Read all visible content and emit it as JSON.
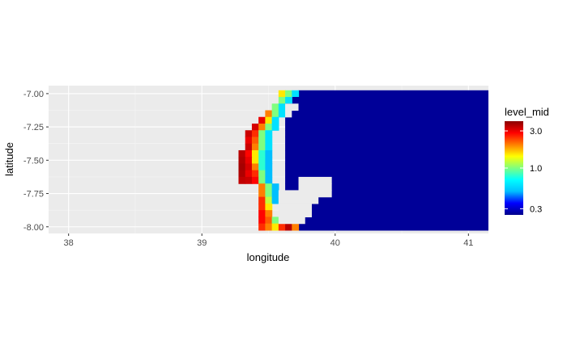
{
  "chart_data": {
    "type": "heatmap",
    "title": "",
    "xlabel": "longitude",
    "ylabel": "latitude",
    "xlim": [
      37.85,
      41.15
    ],
    "ylim": [
      -8.05,
      -6.94
    ],
    "x_ticks": [
      {
        "value": 38,
        "label": "38"
      },
      {
        "value": 39,
        "label": "39"
      },
      {
        "value": 40,
        "label": "40"
      },
      {
        "value": 41,
        "label": "41"
      }
    ],
    "y_ticks": [
      {
        "value": -7.0,
        "label": "-7.00"
      },
      {
        "value": -7.25,
        "label": "-7.25"
      },
      {
        "value": -7.5,
        "label": "-7.50"
      },
      {
        "value": -7.75,
        "label": "-7.75"
      },
      {
        "value": -8.0,
        "label": "-8.00"
      }
    ],
    "grid": true,
    "panel_background": "#ebebeb",
    "grid_color": "#ffffff",
    "legend": {
      "title": "level_mid",
      "placement": "right",
      "scale": "log",
      "range": [
        0.25,
        4.0
      ],
      "ticks": [
        {
          "value": 0.3,
          "label": "0.3"
        },
        {
          "value": 1.0,
          "label": "1.0"
        },
        {
          "value": 3.0,
          "label": "3.0"
        }
      ],
      "colors": [
        "#00008b",
        "#0000ff",
        "#00bfff",
        "#00ffff",
        "#7fff7f",
        "#ffff00",
        "#ff7f00",
        "#ff0000",
        "#8b0000"
      ]
    },
    "rows_lat": [
      -7.0,
      -7.05,
      -7.1,
      -7.15,
      -7.2,
      -7.25,
      -7.3,
      -7.35,
      -7.4,
      -7.45,
      -7.5,
      -7.55,
      -7.6,
      -7.65,
      -7.7,
      -7.75,
      -7.8,
      -7.85,
      -7.9,
      -7.95,
      -8.0
    ],
    "rows": [
      {
        "lon_start": 39.6,
        "values": [
          1.5,
          1.0,
          0.6
        ]
      },
      {
        "lon_start": 39.6,
        "values": [
          1.0,
          0.6
        ]
      },
      {
        "lon_start": 39.55,
        "values": [
          1.0,
          0.6
        ]
      },
      {
        "lon_start": 39.5,
        "values": [
          2.0,
          1.0,
          0.6
        ]
      },
      {
        "lon_start": 39.45,
        "values": [
          3.0,
          1.5,
          0.6
        ]
      },
      {
        "lon_start": 39.4,
        "values": [
          3.2,
          2.0,
          1.0,
          0.6
        ]
      },
      {
        "lon_start": 39.35,
        "values": [
          3.3,
          2.5,
          1.0,
          0.6
        ]
      },
      {
        "lon_start": 39.35,
        "values": [
          3.0,
          2.2,
          1.0,
          0.6
        ]
      },
      {
        "lon_start": 39.35,
        "values": [
          3.3,
          2.0,
          1.0,
          0.6
        ]
      },
      {
        "lon_start": 39.3,
        "values": [
          3.5,
          2.8,
          1.5,
          0.8,
          0.5
        ]
      },
      {
        "lon_start": 39.3,
        "values": [
          3.6,
          3.0,
          1.5,
          0.8,
          0.5
        ]
      },
      {
        "lon_start": 39.3,
        "values": [
          3.7,
          3.2,
          2.0,
          0.8,
          0.5
        ]
      },
      {
        "lon_start": 39.3,
        "values": [
          3.6,
          3.0,
          2.5,
          1.0,
          0.5
        ]
      },
      {
        "lon_start": 39.3,
        "values": [
          3.4,
          3.3,
          2.8,
          1.0,
          0.5
        ]
      },
      {
        "lon_start": 39.45,
        "values": [
          2.0,
          1.0,
          0.5
        ]
      },
      {
        "lon_start": 39.45,
        "values": [
          2.0,
          1.0,
          0.5
        ]
      },
      {
        "lon_start": 39.45,
        "values": [
          2.5,
          1.2,
          0.5
        ]
      },
      {
        "lon_start": 39.45,
        "values": [
          2.5,
          1.5
        ]
      },
      {
        "lon_start": 39.45,
        "values": [
          2.8,
          2.0
        ]
      },
      {
        "lon_start": 39.45,
        "values": [
          2.8,
          2.2,
          1.0
        ]
      },
      {
        "lon_start": 39.45,
        "values": [
          2.5,
          2.0,
          1.5,
          2.5,
          3.5,
          2.0
        ]
      }
    ],
    "default_value_east": 0.26,
    "ocean_east_from_lon": 39.65,
    "islands": [
      {
        "lat": -7.65,
        "lon_from": 39.75,
        "lon_to": 39.95
      },
      {
        "lat": -7.7,
        "lon_from": 39.75,
        "lon_to": 39.95
      },
      {
        "lat": -7.75,
        "lon_from": 39.6,
        "lon_to": 39.95
      },
      {
        "lat": -7.8,
        "lon_from": 39.6,
        "lon_to": 39.85
      },
      {
        "lat": -7.85,
        "lon_from": 39.6,
        "lon_to": 39.8
      },
      {
        "lat": -7.9,
        "lon_from": 39.6,
        "lon_to": 39.8
      },
      {
        "lat": -7.95,
        "lon_from": 39.6,
        "lon_to": 39.75
      },
      {
        "lat": -7.1,
        "lon_from": 39.65,
        "lon_to": 39.7
      },
      {
        "lat": -7.15,
        "lon_from": 39.65,
        "lon_to": 39.65
      }
    ]
  }
}
